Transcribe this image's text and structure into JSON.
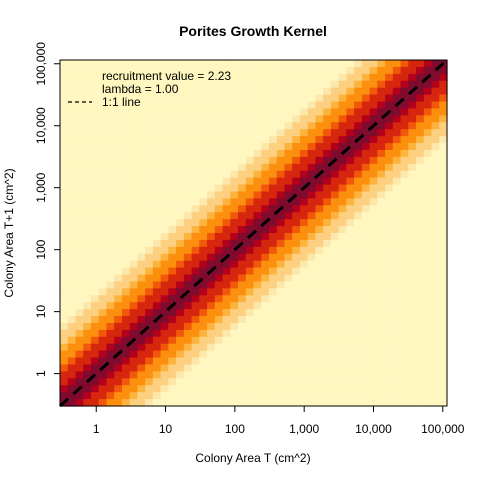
{
  "chart_data": {
    "type": "heatmap",
    "title": "Porites Growth Kernel",
    "xlabel": "Colony Area T (cm^2)",
    "ylabel": "Colony Area T+1 (cm^2)",
    "x_scale": "log10",
    "y_scale": "log10",
    "xlim": [
      0.3,
      115000
    ],
    "ylim": [
      0.3,
      115000
    ],
    "x_ticks": [
      1,
      10,
      100,
      1000,
      10000,
      100000
    ],
    "x_tick_labels": [
      "1",
      "10",
      "100",
      "1,000",
      "10,000",
      "100,000"
    ],
    "y_ticks": [
      1,
      10,
      100,
      1000,
      10000,
      100000
    ],
    "y_tick_labels": [
      "1",
      "10",
      "100",
      "1,000",
      "10,000",
      "100,000"
    ],
    "grid_cells": 50,
    "kernel": {
      "description_values": "growth probability density concentrated along the 1:1 diagonal",
      "diagonal_offset_log10": 0.0,
      "spread_log10": 0.32
    },
    "color_scale": [
      "#7f0b2e",
      "#b3001c",
      "#d7260e",
      "#f2580a",
      "#fd8f0e",
      "#fdb43f",
      "#fdd081",
      "#fde8ac",
      "#fff7bf"
    ],
    "reference_line": {
      "name": "1:1 line",
      "slope": 1,
      "intercept": 0,
      "style": "dashed",
      "color": "#000000"
    },
    "legend": {
      "placement": "top-left",
      "entries": [
        {
          "label": "recruitment value = 2.23",
          "symbol": "none"
        },
        {
          "label": "lambda = 1.00",
          "symbol": "none"
        },
        {
          "label": "1:1 line",
          "symbol": "dashed-line"
        }
      ]
    }
  }
}
